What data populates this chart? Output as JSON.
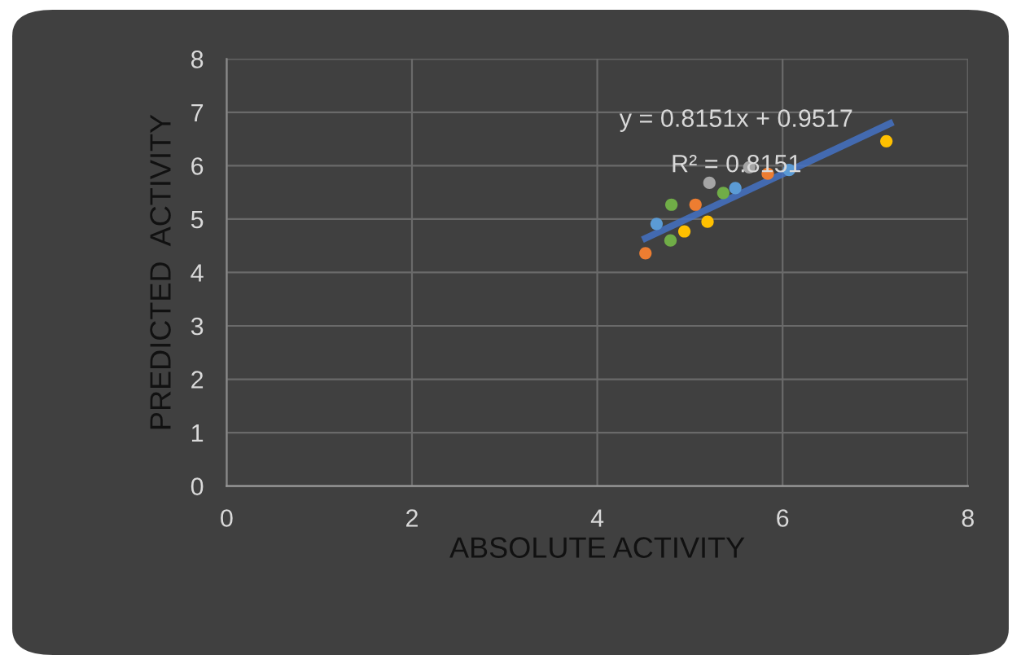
{
  "chart_data": {
    "type": "scatter",
    "xlabel": "ABSOLUTE ACTIVITY",
    "ylabel": "PREDICTED  ACTIVITY",
    "xlim": [
      0,
      8
    ],
    "xticks": [
      0,
      2,
      4,
      6,
      8
    ],
    "ylim": [
      0,
      8
    ],
    "yticks": [
      0,
      1,
      2,
      3,
      4,
      5,
      6,
      7,
      8
    ],
    "grid": true,
    "annotations": [
      "y = 0.8151x + 0.9517",
      "R² = 0.8151"
    ],
    "series": [
      {
        "marker": "circle",
        "x": [
          4.52,
          4.64,
          4.8,
          4.79,
          4.94,
          5.06,
          5.19,
          5.21,
          5.36,
          5.49,
          5.84,
          5.64,
          6.07,
          7.12
        ],
        "values": [
          4.36,
          4.91,
          5.27,
          4.6,
          4.77,
          5.27,
          4.95,
          5.68,
          5.49,
          5.58,
          5.85,
          5.97,
          5.92,
          6.46
        ],
        "colors": [
          "#ed7d31",
          "#5b9bd5",
          "#70ad47",
          "#70ad47",
          "#ffc000",
          "#ed7d31",
          "#ffc000",
          "#a5a5a5",
          "#70ad47",
          "#5b9bd5",
          "#ed7d31",
          "#a5a5a5",
          "#5b9bd5",
          "#ffc000"
        ]
      },
      {
        "type": "line",
        "marker": "none",
        "color": "#4472c4",
        "x": [
          4.52,
          7.16
        ],
        "values": [
          4.64,
          6.79
        ]
      }
    ]
  }
}
